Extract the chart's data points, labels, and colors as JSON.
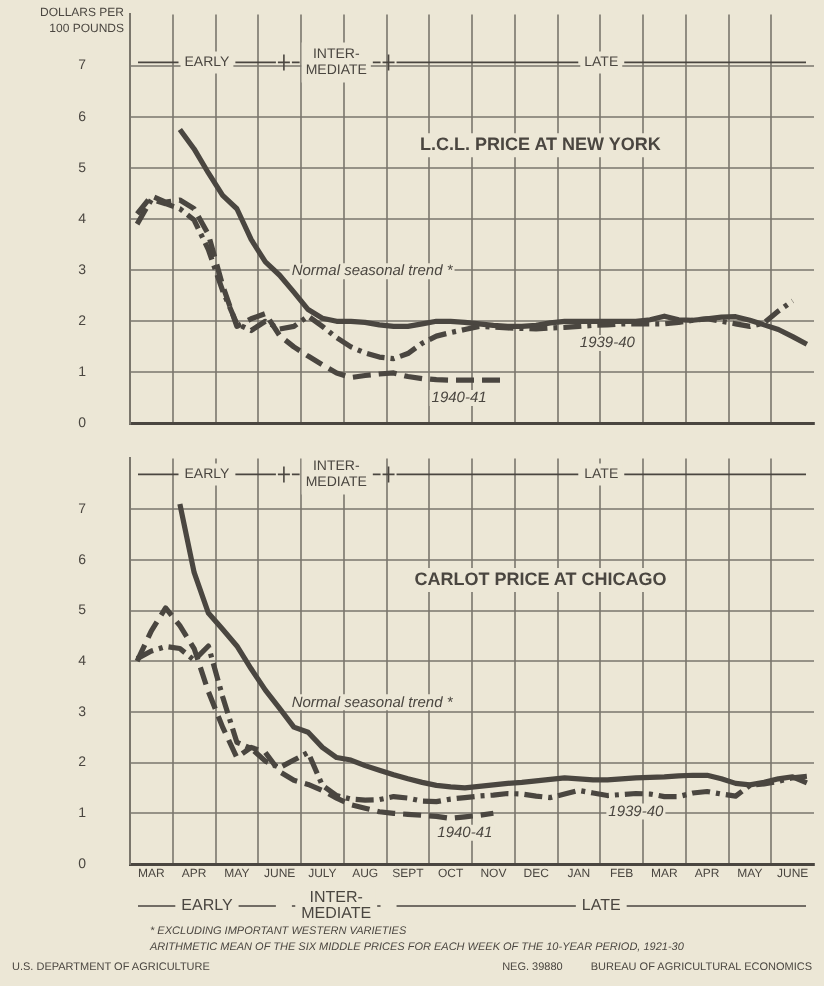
{
  "chart_data": [
    {
      "type": "line",
      "title": "L.C.L. PRICE AT NEW YORK",
      "ylabel": "DOLLARS PER 100 POUNDS",
      "categories": [
        null,
        null,
        null,
        null,
        null,
        null,
        null,
        null,
        null,
        null,
        null,
        null,
        null,
        null,
        null,
        null,
        null,
        null,
        null,
        null,
        null,
        null,
        null,
        null,
        null,
        null,
        null,
        null,
        null,
        null,
        null,
        null,
        null,
        null,
        null,
        null,
        null,
        null,
        null,
        null,
        null,
        null,
        null,
        null,
        null,
        null,
        null,
        null
      ],
      "ylim": [
        0,
        8
      ],
      "yticks": [
        0,
        1,
        2,
        3,
        4,
        5,
        6,
        7
      ],
      "tick_labels": "y",
      "grid": true,
      "legend": false,
      "marker": "none",
      "annotations": [
        "EARLY",
        "INTER-MEDIATE",
        "LATE"
      ],
      "series": [
        {
          "name": "1940-41",
          "color": "#4a4640",
          "line_style": "dashed",
          "values": [
            4.1,
            4.45,
            4.33,
            4.37,
            4.2,
            3.7,
            2.7,
            1.9,
            2.05,
            2.15,
            1.72,
            1.5,
            1.32,
            1.15,
            0.99,
            0.9,
            0.94,
            0.97,
            0.99,
            0.92,
            0.88,
            0.86,
            0.85,
            0.85,
            0.85,
            0.85,
            0.85,
            null,
            null,
            null,
            null,
            null,
            null,
            null,
            null,
            null,
            null,
            null,
            null,
            null,
            null,
            null,
            null,
            null,
            null,
            null,
            null,
            null
          ]
        },
        {
          "name": "1939-40",
          "color": "#4a4640",
          "line_style": "dashdot",
          "values": [
            3.9,
            4.38,
            4.3,
            4.2,
            3.98,
            3.4,
            2.6,
            1.95,
            1.82,
            2.0,
            1.85,
            1.9,
            2.1,
            1.9,
            1.68,
            1.5,
            1.38,
            1.3,
            1.27,
            1.37,
            1.57,
            1.71,
            1.78,
            1.84,
            1.9,
            1.89,
            1.87,
            1.86,
            1.85,
            1.87,
            1.88,
            1.9,
            1.92,
            1.93,
            1.95,
            1.95,
            1.95,
            1.95,
            1.98,
            2.02,
            2.05,
            2.0,
            1.95,
            1.9,
            1.97,
            2.2,
            2.4,
            null
          ]
        },
        {
          "name": "Normal seasonal trend *",
          "color": "#4a4640",
          "line_style": "solid",
          "values": [
            null,
            null,
            null,
            5.75,
            5.37,
            4.9,
            4.46,
            4.2,
            3.6,
            3.16,
            2.9,
            2.57,
            2.23,
            2.06,
            2.0,
            2.0,
            1.98,
            1.93,
            1.9,
            1.9,
            1.95,
            2.0,
            2.0,
            1.98,
            1.95,
            1.92,
            1.9,
            1.9,
            1.92,
            1.97,
            2.0,
            2.0,
            2.0,
            2.0,
            2.0,
            2.0,
            2.03,
            2.1,
            2.03,
            2.02,
            2.05,
            2.08,
            2.09,
            2.02,
            1.93,
            1.84,
            1.7,
            1.55
          ]
        }
      ]
    },
    {
      "type": "line",
      "title": "CARLOT PRICE AT CHICAGO",
      "categories": [
        null,
        "MAR",
        null,
        null,
        "APR",
        null,
        null,
        "MAY",
        null,
        null,
        "JUNE",
        null,
        null,
        "JULY",
        null,
        null,
        "AUG",
        null,
        null,
        "SEPT",
        null,
        null,
        "OCT",
        null,
        null,
        "NOV",
        null,
        null,
        "DEC",
        null,
        null,
        "JAN",
        null,
        null,
        "FEB",
        null,
        null,
        "MAR",
        null,
        null,
        "APR",
        null,
        null,
        "MAY",
        null,
        null,
        "JUNE",
        null
      ],
      "ylim": [
        0,
        8
      ],
      "yticks": [
        0,
        1,
        2,
        3,
        4,
        5,
        6,
        7
      ],
      "grid": true,
      "legend": false,
      "marker": "none",
      "annotations": [
        "EARLY",
        "INTER-MEDIATE",
        "LATE",
        "EARLY",
        "INTER-MEDIATE",
        "LATE",
        "* EXCLUDING IMPORTANT WESTERN VARIETIES",
        "ARITHMETIC MEAN OF THE SIX MIDDLE PRICES FOR EACH WEEK OF THE 10-YEAR PERIOD, 1921-30",
        "U.S. DEPARTMENT OF AGRICULTURE",
        "NEG. 39880",
        "BUREAU OF AGRICULTURAL ECONOMICS"
      ],
      "series": [
        {
          "name": "1940-41",
          "color": "#4a4640",
          "line_style": "dashed",
          "values": [
            4.0,
            4.6,
            5.05,
            4.7,
            4.25,
            3.4,
            2.7,
            2.1,
            2.3,
            2.2,
            1.82,
            1.65,
            1.57,
            1.45,
            1.3,
            1.17,
            1.1,
            1.03,
            1.0,
            0.98,
            0.96,
            0.94,
            0.9,
            0.93,
            0.96,
            1.0,
            null,
            null,
            null,
            null,
            null,
            null,
            null,
            null,
            null,
            null,
            null,
            null,
            null,
            null,
            null,
            null,
            null,
            null,
            null,
            null,
            null,
            null
          ]
        },
        {
          "name": "1939-40",
          "color": "#4a4640",
          "line_style": "dashdot",
          "values": [
            4.05,
            4.2,
            4.29,
            4.25,
            4.02,
            4.3,
            3.3,
            2.4,
            2.28,
            2.03,
            1.9,
            2.05,
            2.2,
            1.55,
            1.35,
            1.28,
            1.26,
            1.27,
            1.33,
            1.3,
            1.24,
            1.23,
            1.28,
            1.31,
            1.34,
            1.36,
            1.39,
            1.38,
            1.34,
            1.31,
            1.38,
            1.45,
            1.4,
            1.35,
            1.37,
            1.39,
            1.38,
            1.33,
            1.33,
            1.4,
            1.43,
            1.38,
            1.34,
            1.55,
            1.58,
            1.63,
            1.7,
            1.73
          ]
        },
        {
          "name": "Normal seasonal trend *",
          "color": "#4a4640",
          "line_style": "solid",
          "values": [
            null,
            null,
            null,
            7.1,
            5.75,
            4.95,
            4.63,
            4.3,
            3.85,
            3.43,
            3.07,
            2.7,
            2.6,
            2.3,
            2.1,
            2.05,
            1.94,
            1.85,
            1.76,
            1.68,
            1.61,
            1.55,
            1.52,
            1.5,
            1.53,
            1.56,
            1.59,
            1.61,
            1.64,
            1.67,
            1.7,
            1.68,
            1.66,
            1.66,
            1.68,
            1.7,
            1.71,
            1.72,
            1.74,
            1.75,
            1.75,
            1.68,
            1.59,
            1.56,
            1.61,
            1.68,
            1.72,
            1.6
          ]
        }
      ]
    }
  ]
}
